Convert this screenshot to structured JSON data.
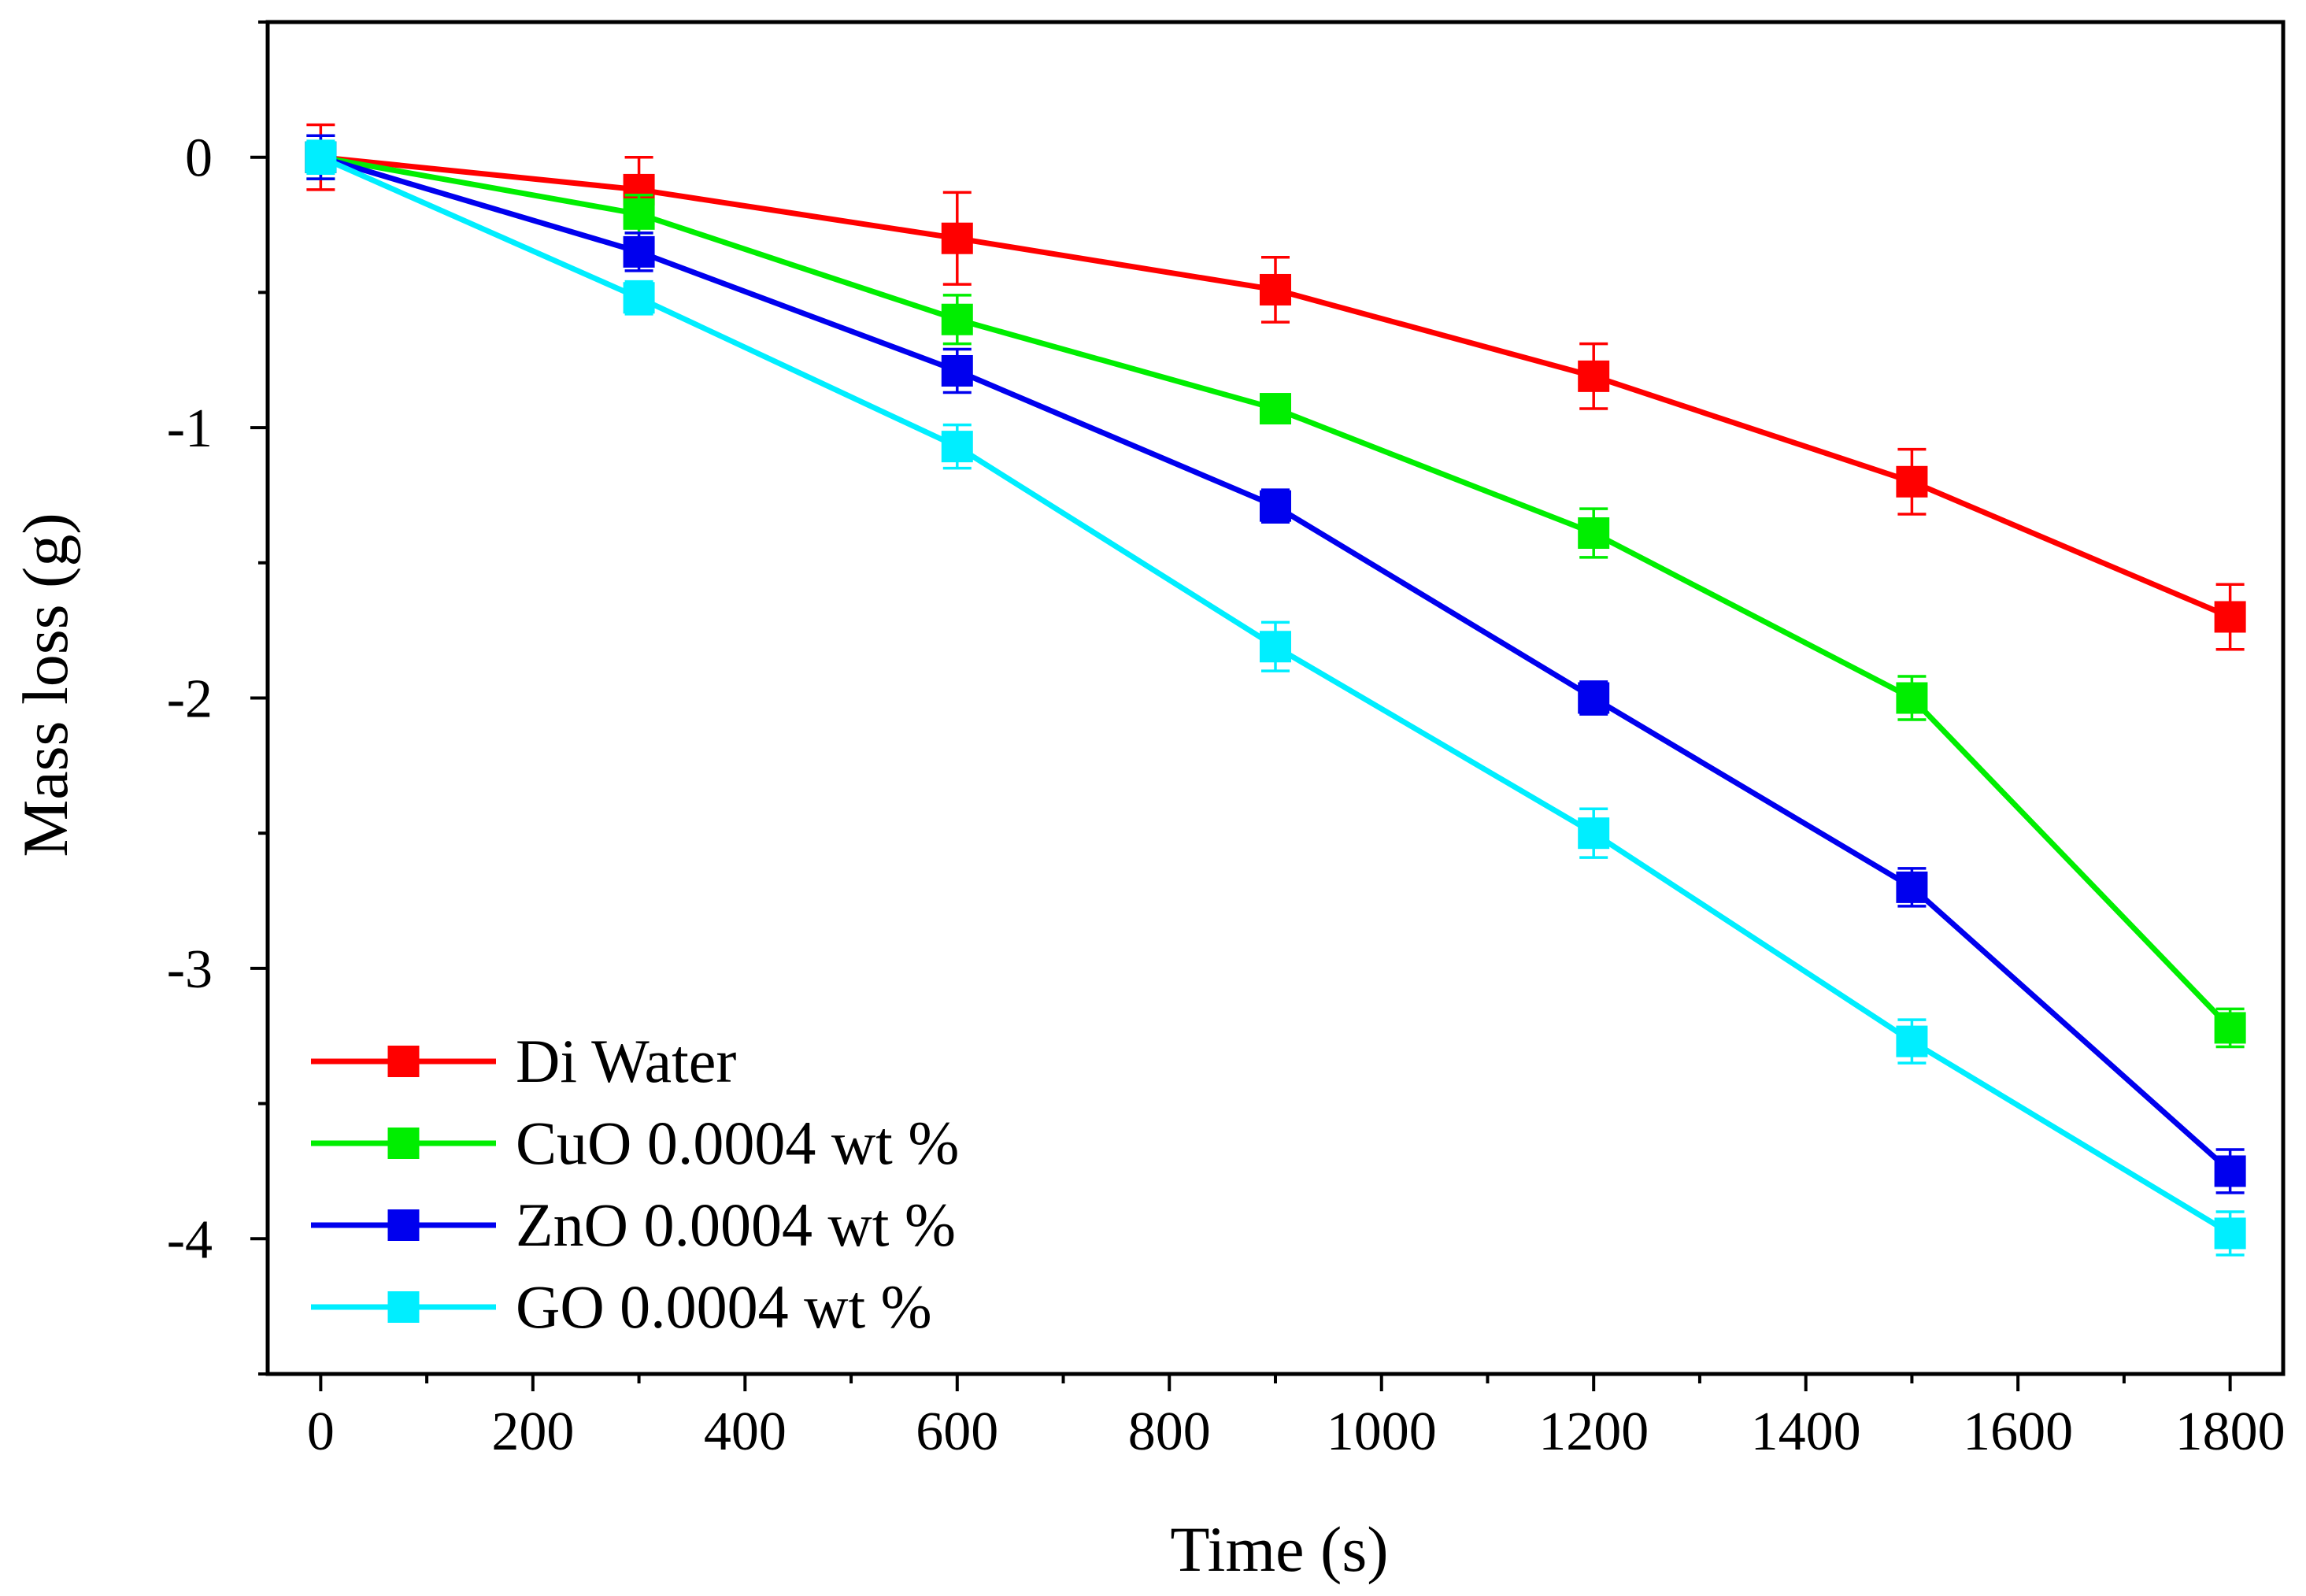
{
  "chart_data": {
    "type": "line",
    "title": "",
    "xlabel": "Time (s)",
    "ylabel": "Mass loss (g)",
    "xlim": [
      -50,
      1850
    ],
    "ylim": [
      -4.5,
      0.5
    ],
    "x": [
      0,
      300,
      600,
      900,
      1200,
      1500,
      1800
    ],
    "x_ticks": [
      0,
      200,
      400,
      600,
      800,
      1000,
      1200,
      1400,
      1600,
      1800
    ],
    "x_tick_labels": [
      "0",
      "200",
      "400",
      "600",
      "800",
      "1000",
      "1200",
      "1400",
      "1600",
      "1800"
    ],
    "y_ticks": [
      0,
      -1,
      -2,
      -3,
      -4
    ],
    "y_tick_labels": [
      "0",
      "-1",
      "-2",
      "-3",
      "-4"
    ],
    "grid": false,
    "legend_position": "bottom-left",
    "series": [
      {
        "name": "Di Water",
        "color": "#ff0000",
        "marker": "square",
        "values": [
          0,
          -0.12,
          -0.3,
          -0.49,
          -0.81,
          -1.2,
          -1.7
        ],
        "errors": [
          0.12,
          0.12,
          0.17,
          0.12,
          0.12,
          0.12,
          0.12
        ]
      },
      {
        "name": "CuO 0.0004 wt %",
        "color": "#00ee00",
        "marker": "square",
        "values": [
          0,
          -0.21,
          -0.6,
          -0.93,
          -1.39,
          -2.0,
          -3.22
        ],
        "errors": [
          0.08,
          0.07,
          0.09,
          0.05,
          0.09,
          0.08,
          0.07
        ]
      },
      {
        "name": "ZnO 0.0004 wt %",
        "color": "#0000ee",
        "marker": "square",
        "values": [
          0,
          -0.35,
          -0.79,
          -1.29,
          -2.0,
          -2.7,
          -3.75
        ],
        "errors": [
          0.08,
          0.07,
          0.08,
          0.06,
          0.06,
          0.07,
          0.08
        ]
      },
      {
        "name": "GO 0.0004 wt %",
        "color": "#00eeff",
        "marker": "square",
        "values": [
          0,
          -0.52,
          -1.07,
          -1.81,
          -2.5,
          -3.27,
          -3.98
        ],
        "errors": [
          0.06,
          0.06,
          0.08,
          0.09,
          0.09,
          0.08,
          0.08
        ]
      }
    ]
  }
}
